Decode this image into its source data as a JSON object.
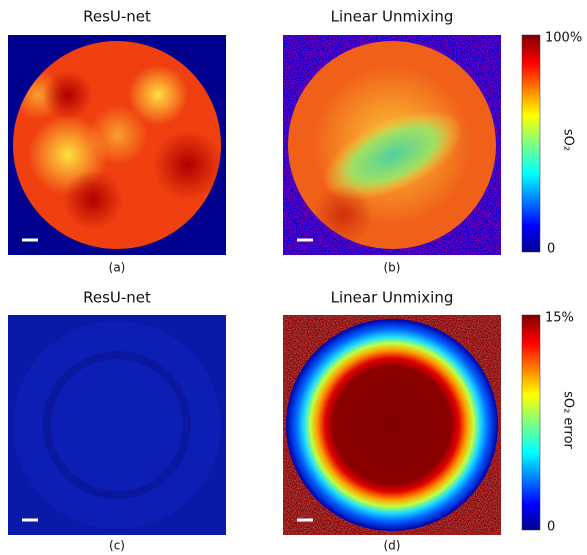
{
  "panels": [
    {
      "title": "ResU-net",
      "caption": "(a)"
    },
    {
      "title": "Linear Unmixing",
      "caption": "(b)"
    },
    {
      "title": "ResU-net",
      "caption": "(c)"
    },
    {
      "title": "Linear Unmixing",
      "caption": "(d)"
    }
  ],
  "colorbars": [
    {
      "top_label": "100%",
      "bottom_label": "0",
      "label": "sO₂"
    },
    {
      "top_label": "15%",
      "bottom_label": "0",
      "label": "sO₂ error"
    }
  ]
}
